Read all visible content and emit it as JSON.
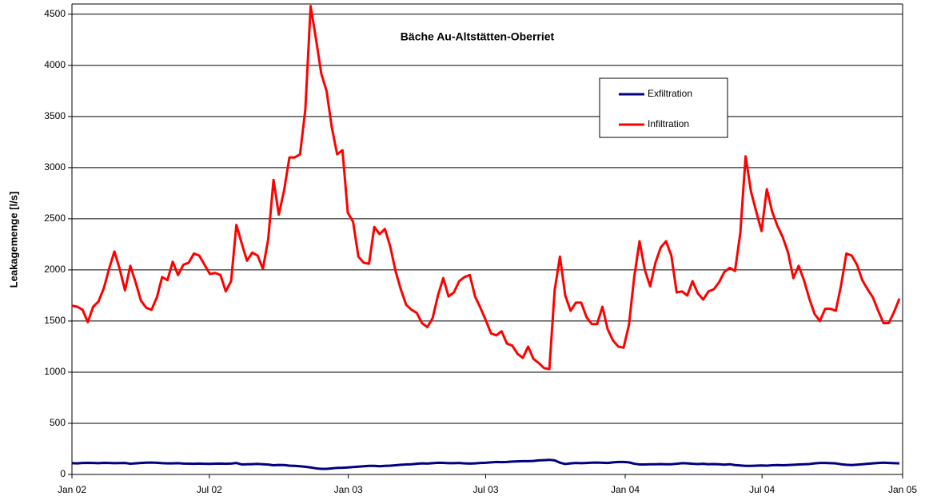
{
  "chart_data": {
    "type": "line",
    "title": "Bäche Au-Altstätten-Oberriet",
    "y_label": "Leakagemenge [l/s]",
    "x": [
      0,
      1,
      2,
      3,
      4,
      5,
      6,
      7,
      8,
      9,
      10,
      11,
      12,
      13,
      14,
      15,
      16,
      17,
      18,
      19,
      20,
      21,
      22,
      23,
      24,
      25,
      26,
      27,
      28,
      29,
      30,
      31,
      32,
      33,
      34,
      35,
      36,
      37,
      38,
      39,
      40,
      41,
      42,
      43,
      44,
      45,
      46,
      47,
      48,
      49,
      50,
      51,
      52,
      53,
      54,
      55,
      56,
      57,
      58,
      59,
      60,
      61,
      62,
      63,
      64,
      65,
      66,
      67,
      68,
      69,
      70,
      71,
      72,
      73,
      74,
      75,
      76,
      77,
      78,
      79,
      80,
      81,
      82,
      83,
      84,
      85,
      86,
      87,
      88,
      89,
      90,
      91,
      92,
      93,
      94,
      95,
      96,
      97,
      98,
      99,
      100,
      101,
      102,
      103,
      104,
      105,
      106,
      107,
      108,
      109,
      110,
      111,
      112,
      113,
      114,
      115,
      116,
      117,
      118,
      119,
      120,
      121,
      122,
      123,
      124,
      125,
      126,
      127,
      128,
      129,
      130,
      131,
      132,
      133,
      134,
      135,
      136,
      137,
      138,
      139,
      140,
      141,
      142,
      143,
      144,
      145,
      146,
      147,
      148,
      149,
      150,
      151,
      152,
      153,
      154,
      155,
      156
    ],
    "xlim": [
      0,
      156.6
    ],
    "xticks": [
      {
        "value": 0,
        "label": "Jan 02"
      },
      {
        "value": 25.9,
        "label": "Jul 02"
      },
      {
        "value": 52.1,
        "label": "Jan 03"
      },
      {
        "value": 78,
        "label": "Jul 03"
      },
      {
        "value": 104.3,
        "label": "Jan 04"
      },
      {
        "value": 130.1,
        "label": "Jul 04"
      },
      {
        "value": 156.6,
        "label": "Jan 05"
      }
    ],
    "ylim": [
      0,
      4600
    ],
    "yticks": [
      0,
      500,
      1000,
      1500,
      2000,
      2500,
      3000,
      3500,
      4000,
      4500
    ],
    "grid": true,
    "series": [
      {
        "name": "Exfiltration",
        "color": "#000080",
        "values": [
          110,
          108,
          112,
          113,
          112,
          110,
          113,
          112,
          110,
          111,
          112,
          105,
          108,
          112,
          115,
          116,
          114,
          110,
          108,
          108,
          110,
          106,
          105,
          104,
          106,
          104,
          103,
          105,
          106,
          104,
          106,
          112,
          98,
          100,
          101,
          103,
          100,
          97,
          90,
          93,
          92,
          86,
          84,
          80,
          75,
          68,
          60,
          55,
          55,
          60,
          64,
          65,
          68,
          72,
          76,
          80,
          84,
          84,
          80,
          84,
          86,
          90,
          95,
          98,
          100,
          104,
          108,
          106,
          110,
          114,
          113,
          110,
          110,
          112,
          108,
          106,
          108,
          112,
          114,
          118,
          122,
          120,
          122,
          126,
          128,
          130,
          130,
          132,
          138,
          140,
          143,
          138,
          115,
          102,
          108,
          112,
          110,
          112,
          115,
          116,
          114,
          112,
          118,
          122,
          122,
          118,
          105,
          98,
          98,
          100,
          100,
          102,
          100,
          100,
          104,
          110,
          108,
          104,
          102,
          104,
          100,
          102,
          100,
          96,
          100,
          92,
          88,
          84,
          84,
          86,
          88,
          86,
          90,
          92,
          90,
          92,
          95,
          98,
          100,
          102,
          108,
          112,
          112,
          110,
          108,
          100,
          95,
          92,
          96,
          100,
          104,
          108,
          112,
          115,
          112,
          110,
          108
        ]
      },
      {
        "name": "Infiltration",
        "color": "#ff0000",
        "values": [
          1650,
          1640,
          1610,
          1490,
          1640,
          1690,
          1820,
          2010,
          2180,
          2010,
          1800,
          2040,
          1880,
          1700,
          1630,
          1610,
          1730,
          1930,
          1900,
          2080,
          1950,
          2050,
          2070,
          2160,
          2140,
          2050,
          1960,
          1970,
          1950,
          1790,
          1890,
          2440,
          2260,
          2090,
          2170,
          2140,
          2010,
          2300,
          2880,
          2540,
          2780,
          3100,
          3100,
          3130,
          3570,
          4580,
          4260,
          3920,
          3750,
          3390,
          3130,
          3170,
          2560,
          2470,
          2130,
          2070,
          2060,
          2420,
          2350,
          2400,
          2230,
          1990,
          1810,
          1660,
          1610,
          1580,
          1480,
          1440,
          1530,
          1750,
          1920,
          1740,
          1780,
          1890,
          1930,
          1950,
          1740,
          1630,
          1510,
          1380,
          1360,
          1400,
          1280,
          1260,
          1180,
          1140,
          1250,
          1130,
          1090,
          1040,
          1030,
          1800,
          2130,
          1750,
          1600,
          1680,
          1680,
          1540,
          1470,
          1470,
          1640,
          1420,
          1310,
          1250,
          1240,
          1460,
          1930,
          2280,
          2000,
          1840,
          2070,
          2220,
          2280,
          2140,
          1780,
          1790,
          1750,
          1890,
          1770,
          1710,
          1790,
          1810,
          1880,
          1980,
          2020,
          1990,
          2360,
          3110,
          2770,
          2570,
          2380,
          2790,
          2570,
          2430,
          2320,
          2170,
          1920,
          2040,
          1900,
          1720,
          1570,
          1500,
          1620,
          1620,
          1600,
          1850,
          2160,
          2140,
          2050,
          1900,
          1810,
          1730,
          1600,
          1480,
          1480,
          1590,
          1720
        ]
      }
    ]
  }
}
